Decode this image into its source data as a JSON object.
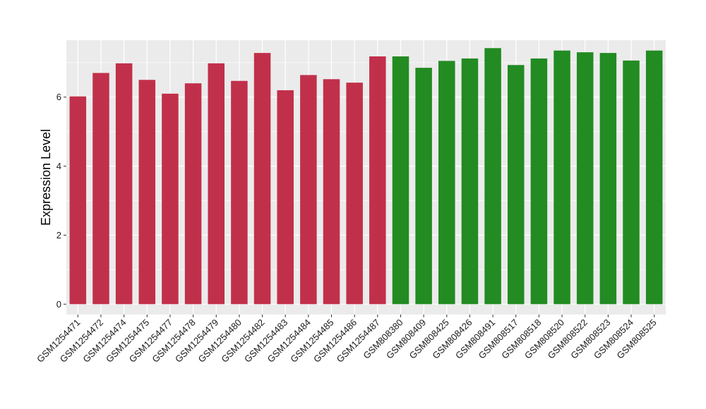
{
  "chart_data": {
    "type": "bar",
    "ylabel": "Expression Level",
    "xlabel": "",
    "ylim": [
      -0.3,
      7.65
    ],
    "yticks": [
      0,
      2,
      4,
      6
    ],
    "grid": true,
    "panel_background": "#ebebeb",
    "grid_color": "#ffffff",
    "categories": [
      "GSM1254471",
      "GSM1254472",
      "GSM1254474",
      "GSM1254475",
      "GSM1254477",
      "GSM1254478",
      "GSM1254479",
      "GSM1254480",
      "GSM1254482",
      "GSM1254483",
      "GSM1254484",
      "GSM1254485",
      "GSM1254486",
      "GSM1254487",
      "GSM808380",
      "GSM808409",
      "GSM808425",
      "GSM808426",
      "GSM808491",
      "GSM808517",
      "GSM808518",
      "GSM808520",
      "GSM808522",
      "GSM808523",
      "GSM808524",
      "GSM808525"
    ],
    "values": [
      6.02,
      6.7,
      6.98,
      6.5,
      6.1,
      6.4,
      6.98,
      6.47,
      7.28,
      6.2,
      6.64,
      6.52,
      6.42,
      7.18,
      7.18,
      6.85,
      7.05,
      7.12,
      7.42,
      6.93,
      7.12,
      7.35,
      7.3,
      7.28,
      7.06,
      7.35
    ],
    "colors": [
      "#c1304a",
      "#c1304a",
      "#c1304a",
      "#c1304a",
      "#c1304a",
      "#c1304a",
      "#c1304a",
      "#c1304a",
      "#c1304a",
      "#c1304a",
      "#c1304a",
      "#c1304a",
      "#c1304a",
      "#c1304a",
      "#228b22",
      "#228b22",
      "#228b22",
      "#228b22",
      "#228b22",
      "#228b22",
      "#228b22",
      "#228b22",
      "#228b22",
      "#228b22",
      "#228b22",
      "#228b22"
    ]
  }
}
